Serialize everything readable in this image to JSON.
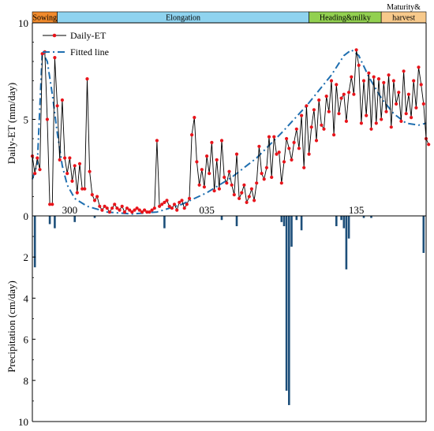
{
  "colors": {
    "et_line": "#000000",
    "et_marker": "#e8141b",
    "fitted_line": "#1f6fb0",
    "precip_bar": "#1d4f7a",
    "axis": "#000000"
  },
  "chart_data": [
    {
      "type": "line",
      "ylabel": "Daily-ET (mm/day)",
      "ylim": [
        0,
        10
      ],
      "y_ticks": [
        0,
        5,
        10
      ],
      "x_tick_labels": [
        {
          "day": 15,
          "label": "300"
        },
        {
          "day": 70,
          "label": "035"
        },
        {
          "day": 130,
          "label": "135"
        }
      ],
      "xlim": [
        0,
        158
      ],
      "legend": {
        "position": "top-left",
        "entries": [
          "Daily-ET",
          "Fitted line"
        ]
      },
      "stages": [
        {
          "name": "Sowing",
          "start": 0,
          "end": 10,
          "color": "#f08a2c"
        },
        {
          "name": "Elongation",
          "start": 10,
          "end": 111,
          "color": "#8fd3ef"
        },
        {
          "name": "Heading&milky",
          "start": 111,
          "end": 140,
          "color": "#92d050"
        },
        {
          "name": "harvest",
          "start": 140,
          "end": 158,
          "color": "#f7c98b",
          "prefix": "Maturity&"
        }
      ],
      "series": [
        {
          "name": "Daily-ET",
          "style": "line-marker",
          "x_start": 0,
          "values": [
            3.1,
            2.2,
            3.0,
            2.4,
            8.4,
            8.5,
            5.0,
            0.6,
            0.6,
            8.2,
            5.7,
            2.9,
            6.0,
            3.0,
            2.2,
            3.0,
            1.8,
            2.6,
            1.2,
            2.7,
            1.4,
            1.4,
            7.1,
            2.3,
            1.1,
            0.8,
            1.0,
            0.5,
            0.3,
            0.5,
            0.4,
            0.2,
            0.4,
            0.6,
            0.4,
            0.3,
            0.5,
            0.2,
            0.4,
            0.3,
            0.2,
            0.3,
            0.4,
            0.3,
            0.2,
            0.3,
            0.2,
            0.2,
            0.3,
            0.4,
            3.9,
            0.5,
            0.6,
            0.7,
            0.8,
            0.5,
            0.4,
            0.6,
            0.3,
            0.7,
            0.8,
            0.4,
            0.6,
            0.9,
            4.2,
            5.1,
            2.8,
            1.6,
            2.4,
            1.5,
            3.1,
            2.2,
            3.8,
            1.3,
            2.9,
            1.4,
            3.9,
            2.0,
            1.7,
            2.3,
            1.6,
            1.1,
            3.2,
            0.9,
            1.2,
            1.6,
            0.7,
            1.0,
            1.4,
            0.8,
            1.7,
            3.6,
            2.2,
            1.9,
            2.5,
            4.1,
            2.0,
            4.1,
            3.2,
            3.3,
            1.7,
            2.8,
            4.0,
            3.5,
            2.9,
            3.8,
            4.5,
            3.5,
            5.2,
            2.5,
            5.7,
            3.2,
            4.6,
            5.5,
            3.9,
            6.0,
            4.7,
            4.5,
            6.2,
            5.4,
            7.0,
            4.2,
            6.8,
            5.3,
            6.1,
            6.3,
            4.9,
            6.4,
            7.2,
            6.3,
            8.6,
            7.8,
            4.8,
            7.0,
            5.2,
            7.4,
            4.5,
            7.2,
            4.8,
            7.1,
            5.0,
            6.9,
            5.4,
            7.3,
            4.6,
            7.0,
            5.8,
            6.4,
            4.9,
            7.5,
            5.3,
            6.3,
            5.1,
            7.0,
            5.6,
            7.7,
            6.8,
            5.8,
            4.0,
            3.7
          ]
        },
        {
          "name": "Fitted line",
          "style": "dash-dot",
          "points": [
            [
              0,
              1.9
            ],
            [
              2,
              2.7
            ],
            [
              4,
              8.5
            ],
            [
              6,
              8.0
            ],
            [
              8,
              6.3
            ],
            [
              10,
              4.3
            ],
            [
              12,
              2.6
            ],
            [
              14,
              1.6
            ],
            [
              17,
              0.9
            ],
            [
              22,
              0.5
            ],
            [
              30,
              0.2
            ],
            [
              40,
              0.1
            ],
            [
              50,
              0.2
            ],
            [
              60,
              0.6
            ],
            [
              70,
              1.2
            ],
            [
              80,
              2.0
            ],
            [
              90,
              3.0
            ],
            [
              100,
              4.3
            ],
            [
              110,
              5.7
            ],
            [
              120,
              7.3
            ],
            [
              125,
              8.3
            ],
            [
              128,
              8.6
            ],
            [
              131,
              8.3
            ],
            [
              135,
              7.2
            ],
            [
              140,
              6.1
            ],
            [
              145,
              5.3
            ],
            [
              150,
              4.8
            ],
            [
              155,
              4.7
            ],
            [
              158,
              4.8
            ]
          ]
        }
      ]
    },
    {
      "type": "bar",
      "ylabel": "Precipitation (cm/day)",
      "ylim": [
        0,
        10
      ],
      "y_ticks": [
        0,
        2,
        4,
        6,
        8,
        10
      ],
      "inverted": true,
      "series": [
        {
          "name": "Precipitation",
          "points": [
            [
              1,
              2.5
            ],
            [
              7,
              0.4
            ],
            [
              9,
              0.6
            ],
            [
              17,
              0.3
            ],
            [
              25,
              0.1
            ],
            [
              53,
              0.6
            ],
            [
              76,
              0.2
            ],
            [
              82,
              0.5
            ],
            [
              100,
              0.3
            ],
            [
              101,
              0.5
            ],
            [
              102,
              8.5
            ],
            [
              103,
              9.2
            ],
            [
              104,
              1.5
            ],
            [
              106,
              0.2
            ],
            [
              108,
              0.7
            ],
            [
              122,
              0.5
            ],
            [
              124,
              0.2
            ],
            [
              125,
              0.6
            ],
            [
              126,
              2.6
            ],
            [
              127,
              1.1
            ],
            [
              133,
              0.1
            ],
            [
              136,
              0.1
            ],
            [
              157,
              1.8
            ]
          ]
        }
      ]
    }
  ]
}
